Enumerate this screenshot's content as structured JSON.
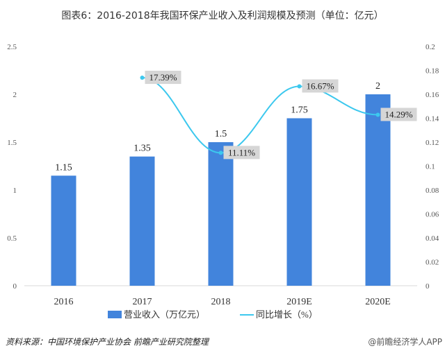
{
  "title": "图表6：2016-2018年我国环保产业收入及利润规模及预测（单位：亿元）",
  "source": "资料来源：中国环境保护产业协会 前瞻产业研究院整理",
  "watermark": "@前瞻经济学人APP",
  "chart_data": {
    "type": "bar+line",
    "title": "图表6：2016-2018年我国环保产业收入及利润规模及预测（单位：亿元）",
    "categories": [
      "2016",
      "2017",
      "2018",
      "2019E",
      "2020E"
    ],
    "series": [
      {
        "name": "营业收入（万亿元）",
        "type": "bar",
        "axis": "left",
        "values": [
          1.15,
          1.35,
          1.5,
          1.75,
          2
        ],
        "labels": [
          "1.15",
          "1.35",
          "1.5",
          "1.75",
          "2"
        ],
        "color": "#4284DC"
      },
      {
        "name": "同比增长（%）",
        "type": "line",
        "axis": "right",
        "values": [
          null,
          0.1739,
          0.1111,
          0.1667,
          0.1429
        ],
        "labels": [
          "",
          "17.39%",
          "11.11%",
          "16.67%",
          "14.29%"
        ],
        "color": "#3CC8EE"
      }
    ],
    "yleft": {
      "range": [
        0,
        2.5
      ],
      "ticks": [
        "0",
        "0.5",
        "1",
        "1.5",
        "2",
        "2.5"
      ]
    },
    "yright": {
      "range": [
        0,
        0.2
      ],
      "ticks": [
        "0",
        "0.02",
        "0.04",
        "0.06",
        "0.08",
        "0.1",
        "0.12",
        "0.14",
        "0.16",
        "0.18",
        "0.2"
      ]
    },
    "grid": false,
    "legend": "bottom"
  }
}
